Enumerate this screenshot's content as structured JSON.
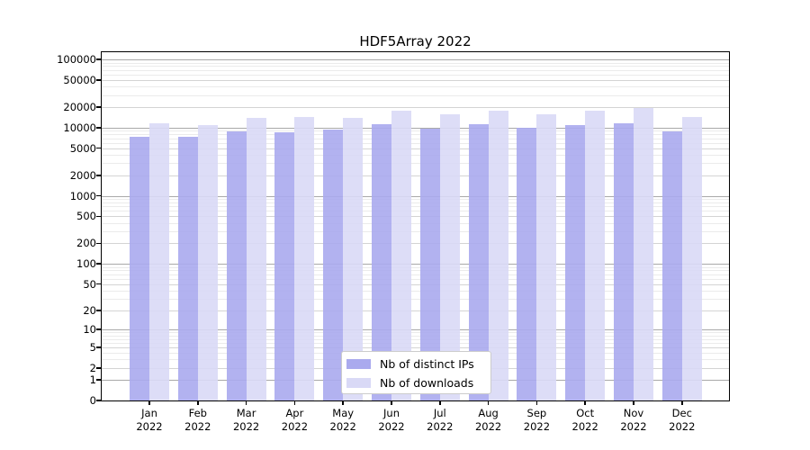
{
  "chart_data": {
    "type": "bar",
    "title": "HDF5Array 2022",
    "categories": [
      "Jan",
      "Feb",
      "Mar",
      "Apr",
      "May",
      "Jun",
      "Jul",
      "Aug",
      "Sep",
      "Oct",
      "Nov",
      "Dec"
    ],
    "category_year": "2022",
    "series": [
      {
        "name": "Nb of distinct IPs",
        "color": "#aaaaee",
        "values": [
          7430,
          7450,
          8770,
          8510,
          9400,
          11400,
          9800,
          11300,
          10090,
          11070,
          11750,
          8770
        ]
      },
      {
        "name": "Nb of downloads",
        "color": "#d9d9f6",
        "values": [
          11540,
          11070,
          14090,
          14520,
          14090,
          17700,
          15770,
          17820,
          15920,
          17550,
          19320,
          14190
        ]
      }
    ],
    "xlabel": "",
    "ylabel": "",
    "yscale": "log1p",
    "ytick_values": [
      0,
      1,
      2,
      5,
      10,
      20,
      50,
      100,
      200,
      500,
      1000,
      2000,
      5000,
      10000,
      20000,
      50000,
      100000
    ],
    "ylim": [
      0,
      127000
    ],
    "grid": true,
    "gridline_colors": {
      "major": "#a9a9a9",
      "labeled_mid": "#d4d4d4",
      "minor": "#ebebeb"
    },
    "legend_position": "lower center",
    "axis_color": "#000000"
  }
}
